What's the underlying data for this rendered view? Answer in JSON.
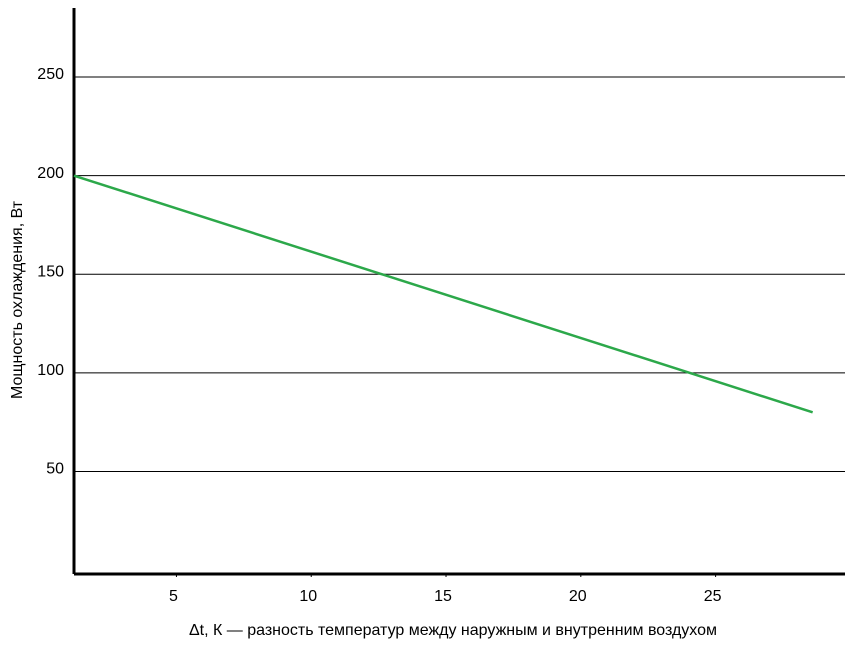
{
  "chart_data": {
    "type": "line",
    "xlabel": "Δt, К — разность температур между наружным и внутренним воздухом",
    "ylabel": "Мощность охлаждения, Вт",
    "x": [
      1.2,
      28.6
    ],
    "series": [
      {
        "name": null,
        "color": "#2ca84a",
        "values": [
          200,
          80
        ]
      }
    ],
    "xlim": [
      1.2,
      29.8
    ],
    "ylim": [
      -2,
      285
    ],
    "xticks": [
      5,
      10,
      15,
      20,
      25
    ],
    "yticks": [
      50,
      100,
      150,
      200,
      250
    ],
    "grid": true
  }
}
